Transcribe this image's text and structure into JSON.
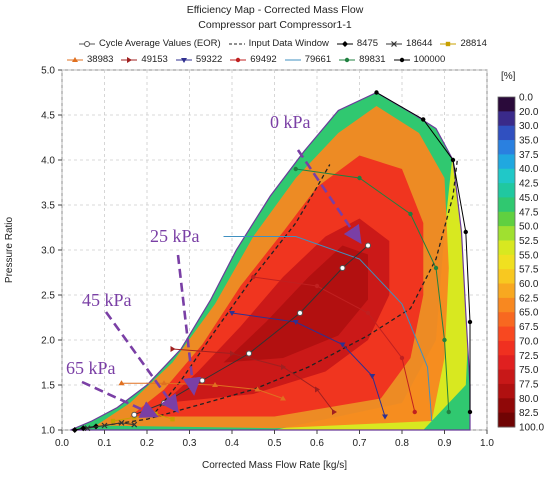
{
  "title": "Efficiency Map - Corrected Mass Flow",
  "subtitle": "Compressor part Compressor1-1",
  "legend": {
    "row1": [
      {
        "label": "Cycle Average Values (EOR)",
        "color": "#555555",
        "marker": "circle-open",
        "line": "solid"
      },
      {
        "label": "Input Data Window",
        "color": "#222222",
        "marker": "none",
        "line": "dashed"
      },
      {
        "label": "8475",
        "color": "#000000",
        "marker": "diamond",
        "line": "solid"
      },
      {
        "label": "18644",
        "color": "#333333",
        "marker": "x",
        "line": "solid"
      },
      {
        "label": "28814",
        "color": "#c8a000",
        "marker": "square",
        "line": "solid"
      }
    ],
    "row2": [
      {
        "label": "38983",
        "color": "#e07020",
        "marker": "triangle",
        "line": "solid"
      },
      {
        "label": "49153",
        "color": "#a02020",
        "marker": "triangle-right",
        "line": "solid"
      },
      {
        "label": "59322",
        "color": "#303090",
        "marker": "triangle-down",
        "line": "solid"
      },
      {
        "label": "69492",
        "color": "#c02020",
        "marker": "circle",
        "line": "solid"
      },
      {
        "label": "79661",
        "color": "#4090c0",
        "marker": "none",
        "line": "solid"
      },
      {
        "label": "89831",
        "color": "#208040",
        "marker": "circle",
        "line": "solid"
      },
      {
        "label": "100000",
        "color": "#000000",
        "marker": "circle",
        "line": "solid"
      }
    ]
  },
  "colorbar": {
    "unit": "[%]",
    "ticks": [
      "0.0",
      "20.0",
      "30.0",
      "35.0",
      "37.5",
      "40.0",
      "42.5",
      "45.0",
      "47.5",
      "50.0",
      "52.5",
      "55.0",
      "57.5",
      "60.0",
      "62.5",
      "65.0",
      "67.5",
      "70.0",
      "72.5",
      "75.0",
      "77.5",
      "80.0",
      "82.5",
      "100.0"
    ],
    "colors": [
      "#2a0a3a",
      "#3a2a8a",
      "#3050c0",
      "#2a80e0",
      "#20a8e0",
      "#20c8c8",
      "#20c8a0",
      "#30c870",
      "#60d040",
      "#a0e030",
      "#d8e820",
      "#f0e020",
      "#f8c820",
      "#f8a820",
      "#f88820",
      "#f86820",
      "#f84820",
      "#f03020",
      "#e02020",
      "#c81818",
      "#b01010",
      "#900808",
      "#700404",
      "#700404"
    ]
  },
  "pressure_annotations": [
    "0 kPa",
    "25 kPa",
    "45 kPa",
    "65 kPa"
  ],
  "chart_data": {
    "type": "heatmap",
    "title": "Efficiency Map - Corrected Mass Flow",
    "subtitle": "Compressor part Compressor1-1",
    "xlabel": "Corrected Mass Flow Rate [kg/s]",
    "ylabel": "Pressure Ratio",
    "xlim": [
      0.0,
      1.0
    ],
    "ylim": [
      1.0,
      5.0
    ],
    "x_ticks": [
      "0.0",
      "0.1",
      "0.2",
      "0.3",
      "0.4",
      "0.5",
      "0.6",
      "0.7",
      "0.8",
      "0.9",
      "1.0"
    ],
    "y_ticks": [
      "1.0",
      "1.5",
      "2.0",
      "2.5",
      "3.0",
      "3.5",
      "4.0",
      "4.5",
      "5.0"
    ],
    "grid": true,
    "colorbar_unit": "[%]",
    "map_boundary": [
      [
        0.02,
        1.0
      ],
      [
        0.07,
        1.1
      ],
      [
        0.13,
        1.25
      ],
      [
        0.2,
        1.5
      ],
      [
        0.28,
        1.9
      ],
      [
        0.35,
        2.45
      ],
      [
        0.41,
        3.0
      ],
      [
        0.49,
        3.6
      ],
      [
        0.57,
        4.1
      ],
      [
        0.65,
        4.55
      ],
      [
        0.74,
        4.75
      ],
      [
        0.83,
        4.5
      ],
      [
        0.88,
        4.35
      ],
      [
        0.92,
        4.0
      ],
      [
        0.94,
        3.2
      ],
      [
        0.95,
        2.3
      ],
      [
        0.96,
        1.5
      ],
      [
        0.96,
        1.0
      ]
    ],
    "efficiency_regions": [
      {
        "efficiency": 62.5,
        "polygon": [
          [
            0.08,
            1.05
          ],
          [
            0.16,
            1.3
          ],
          [
            0.26,
            1.75
          ],
          [
            0.36,
            2.4
          ],
          [
            0.45,
            3.15
          ],
          [
            0.55,
            3.8
          ],
          [
            0.65,
            4.3
          ],
          [
            0.74,
            4.6
          ],
          [
            0.84,
            4.3
          ],
          [
            0.9,
            3.8
          ],
          [
            0.91,
            2.8
          ],
          [
            0.9,
            1.8
          ],
          [
            0.87,
            1.1
          ],
          [
            0.5,
            1.02
          ]
        ]
      },
      {
        "efficiency": 70.0,
        "polygon": [
          [
            0.16,
            1.15
          ],
          [
            0.24,
            1.45
          ],
          [
            0.33,
            1.95
          ],
          [
            0.42,
            2.6
          ],
          [
            0.52,
            3.2
          ],
          [
            0.6,
            3.7
          ],
          [
            0.7,
            4.05
          ],
          [
            0.8,
            3.9
          ],
          [
            0.85,
            3.3
          ],
          [
            0.85,
            2.5
          ],
          [
            0.82,
            1.8
          ],
          [
            0.75,
            1.35
          ],
          [
            0.5,
            1.15
          ]
        ]
      },
      {
        "efficiency": 75.0,
        "polygon": [
          [
            0.24,
            1.3
          ],
          [
            0.32,
            1.65
          ],
          [
            0.42,
            2.15
          ],
          [
            0.52,
            2.7
          ],
          [
            0.62,
            3.15
          ],
          [
            0.7,
            3.35
          ],
          [
            0.77,
            3.1
          ],
          [
            0.77,
            2.5
          ],
          [
            0.72,
            2.0
          ],
          [
            0.62,
            1.65
          ],
          [
            0.45,
            1.4
          ]
        ]
      },
      {
        "efficiency": 77.5,
        "polygon": [
          [
            0.38,
            1.75
          ],
          [
            0.48,
            2.2
          ],
          [
            0.58,
            2.7
          ],
          [
            0.66,
            3.05
          ],
          [
            0.72,
            2.95
          ],
          [
            0.72,
            2.45
          ],
          [
            0.65,
            2.05
          ],
          [
            0.52,
            1.8
          ]
        ]
      }
    ],
    "surge_line_0kPa": [
      [
        0.22,
        1.2
      ],
      [
        0.28,
        1.55
      ],
      [
        0.36,
        2.1
      ],
      [
        0.45,
        2.7
      ],
      [
        0.55,
        3.3
      ],
      [
        0.6,
        3.7
      ],
      [
        0.63,
        3.95
      ]
    ],
    "surge_line_65kPa": [
      [
        0.1,
        1.05
      ],
      [
        0.2,
        1.12
      ],
      [
        0.3,
        1.25
      ],
      [
        0.45,
        1.45
      ],
      [
        0.58,
        1.7
      ],
      [
        0.72,
        2.05
      ],
      [
        0.82,
        2.35
      ],
      [
        0.88,
        2.9
      ],
      [
        0.92,
        3.6
      ],
      [
        0.93,
        4.0
      ]
    ],
    "speed_lines": [
      {
        "name": "8475",
        "points": [
          [
            0.03,
            1.0
          ],
          [
            0.05,
            1.02
          ],
          [
            0.08,
            1.04
          ]
        ]
      },
      {
        "name": "18644",
        "points": [
          [
            0.06,
            1.02
          ],
          [
            0.1,
            1.05
          ],
          [
            0.14,
            1.08
          ],
          [
            0.17,
            1.06
          ]
        ]
      },
      {
        "name": "28814",
        "points": [
          [
            0.12,
            1.1
          ],
          [
            0.17,
            1.14
          ],
          [
            0.22,
            1.18
          ],
          [
            0.26,
            1.12
          ]
        ]
      },
      {
        "name": "38983",
        "points": [
          [
            0.14,
            1.52
          ],
          [
            0.24,
            1.52
          ],
          [
            0.36,
            1.5
          ],
          [
            0.46,
            1.45
          ],
          [
            0.52,
            1.35
          ]
        ]
      },
      {
        "name": "49153",
        "points": [
          [
            0.26,
            1.9
          ],
          [
            0.4,
            1.85
          ],
          [
            0.52,
            1.7
          ],
          [
            0.6,
            1.45
          ],
          [
            0.64,
            1.2
          ]
        ]
      },
      {
        "name": "59322",
        "points": [
          [
            0.4,
            2.3
          ],
          [
            0.55,
            2.2
          ],
          [
            0.66,
            1.95
          ],
          [
            0.73,
            1.6
          ],
          [
            0.76,
            1.15
          ]
        ]
      },
      {
        "name": "69492",
        "points": [
          [
            0.45,
            2.7
          ],
          [
            0.6,
            2.6
          ],
          [
            0.72,
            2.3
          ],
          [
            0.8,
            1.8
          ],
          [
            0.83,
            1.2
          ]
        ]
      },
      {
        "name": "79661",
        "points": [
          [
            0.38,
            3.15
          ],
          [
            0.55,
            3.15
          ],
          [
            0.7,
            2.9
          ],
          [
            0.8,
            2.4
          ],
          [
            0.86,
            1.7
          ],
          [
            0.87,
            1.1
          ]
        ]
      },
      {
        "name": "89831",
        "points": [
          [
            0.55,
            3.9
          ],
          [
            0.7,
            3.8
          ],
          [
            0.82,
            3.4
          ],
          [
            0.88,
            2.8
          ],
          [
            0.9,
            2.0
          ],
          [
            0.91,
            1.2
          ]
        ]
      },
      {
        "name": "100000",
        "points": [
          [
            0.74,
            4.75
          ],
          [
            0.85,
            4.45
          ],
          [
            0.92,
            4.0
          ],
          [
            0.95,
            3.2
          ],
          [
            0.96,
            2.2
          ],
          [
            0.96,
            1.2
          ]
        ]
      }
    ],
    "cycle_average_points": [
      [
        0.17,
        1.17
      ],
      [
        0.24,
        1.3
      ],
      [
        0.33,
        1.55
      ],
      [
        0.44,
        1.85
      ],
      [
        0.56,
        2.3
      ],
      [
        0.66,
        2.8
      ],
      [
        0.72,
        3.05
      ]
    ],
    "annotations": [
      {
        "text": "0 kPa",
        "arrow_to": [
          0.7,
          3.1
        ]
      },
      {
        "text": "25 kPa",
        "arrow_to": [
          0.31,
          1.42
        ]
      },
      {
        "text": "45 kPa",
        "arrow_to": [
          0.27,
          1.22
        ]
      },
      {
        "text": "65 kPa",
        "arrow_to": [
          0.22,
          1.16
        ]
      }
    ]
  }
}
